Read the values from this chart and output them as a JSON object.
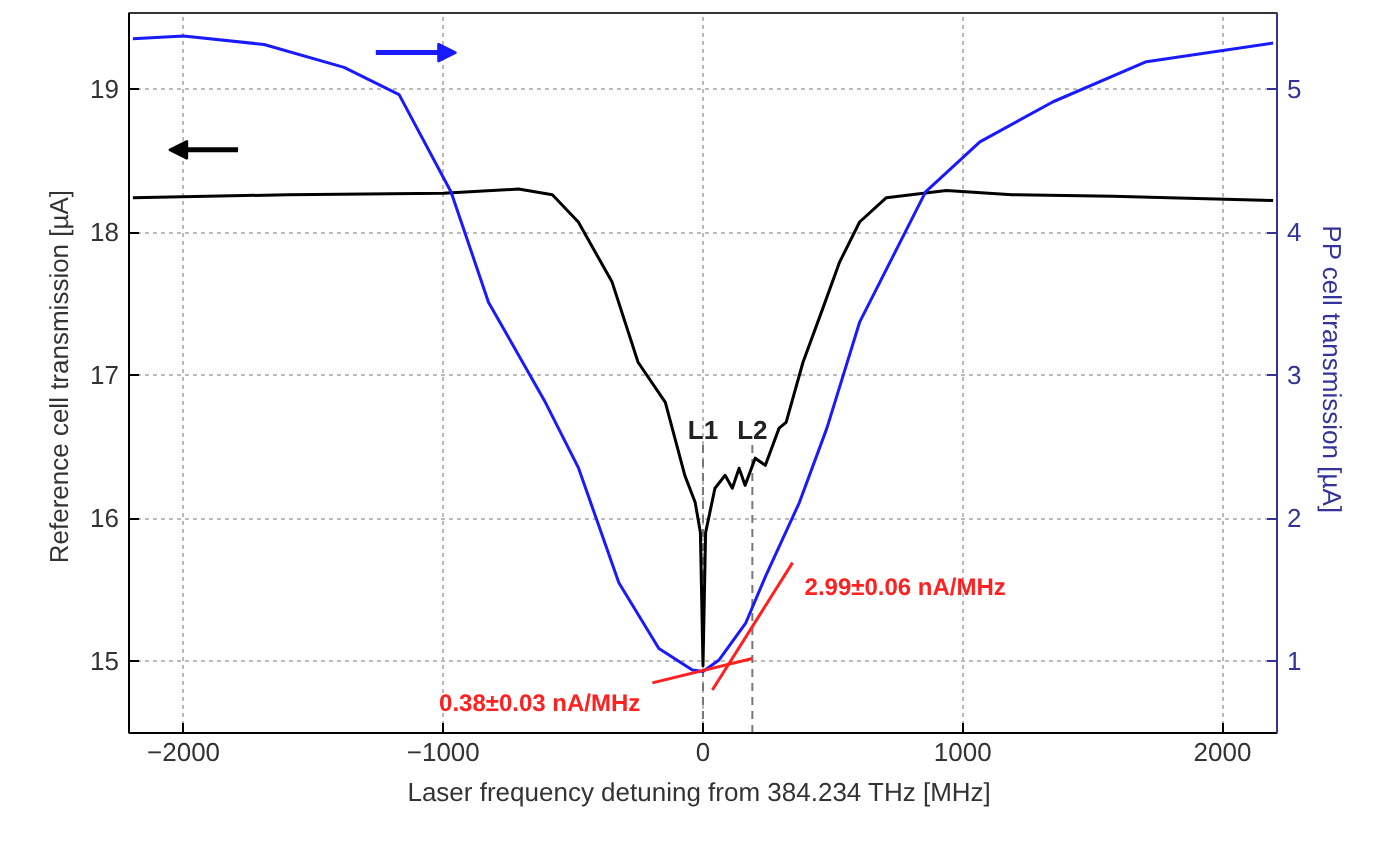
{
  "chart_data": {
    "type": "line",
    "xlabel": "Laser frequency detuning from 384.234 THz  [MHz]",
    "ylabel": "Reference cell transmission  [µA]",
    "y2label": "PP cell transmission  [µA]",
    "xlim": [
      -2210,
      2210
    ],
    "xticks": [
      -2000,
      -1000,
      0,
      1000,
      2000
    ],
    "ylim": [
      14.5,
      19.53
    ],
    "yticks": [
      15,
      16,
      17,
      18,
      19
    ],
    "y2lim": [
      0.5,
      5.53
    ],
    "y2ticks": [
      1,
      2,
      3,
      4,
      5
    ],
    "grid": true,
    "line_style": "solid",
    "series": [
      {
        "color": "#000000",
        "x": [
          -2195,
          -1600,
          -1000,
          -710,
          -580,
          -480,
          -350,
          -250,
          -145,
          -70,
          -30,
          -10,
          0,
          10,
          46,
          85,
          113,
          139,
          162,
          201,
          240,
          293,
          320,
          385,
          462,
          526,
          603,
          706,
          937,
          1190,
          1577,
          2195
        ],
        "values": [
          18.24,
          18.26,
          18.27,
          18.3,
          18.26,
          18.07,
          17.65,
          17.09,
          16.81,
          16.3,
          16.11,
          15.9,
          14.97,
          15.9,
          16.21,
          16.3,
          16.21,
          16.35,
          16.23,
          16.42,
          16.37,
          16.63,
          16.67,
          17.09,
          17.47,
          17.79,
          18.07,
          18.24,
          18.29,
          18.26,
          18.25,
          18.22
        ]
      },
      {
        "color": "#1a1aff",
        "axis": "y2",
        "x": [
          -2195,
          -2000,
          -1690,
          -1382,
          -1170,
          -970,
          -826,
          -607,
          -479,
          -324,
          -170,
          -41,
          0,
          62,
          165,
          242,
          371,
          477,
          603,
          857,
          1066,
          1348,
          1707,
          2195
        ],
        "values": [
          5.35,
          5.37,
          5.31,
          5.15,
          4.96,
          4.28,
          3.51,
          2.81,
          2.35,
          1.55,
          1.09,
          0.94,
          0.93,
          1.01,
          1.27,
          1.6,
          2.11,
          2.63,
          3.37,
          4.28,
          4.63,
          4.91,
          5.19,
          5.32
        ]
      },
      {
        "name": "0.38±0.03 nA/MHz",
        "color": "#ff2020",
        "axis": "y2",
        "x": [
          -195,
          190
        ],
        "values": [
          0.85,
          1.02
        ]
      },
      {
        "name": "2.99±0.06 nA/MHz",
        "color": "#ff2020",
        "axis": "y2",
        "x": [
          36,
          345
        ],
        "values": [
          0.8,
          1.69
        ]
      }
    ],
    "ref_lines": [
      {
        "axis": "x",
        "value": 0,
        "label": "L1",
        "line_style": "dashed",
        "color": "#777777"
      },
      {
        "axis": "x",
        "value": 190,
        "label": "L2",
        "line_style": "dashed",
        "color": "#777777"
      }
    ]
  }
}
